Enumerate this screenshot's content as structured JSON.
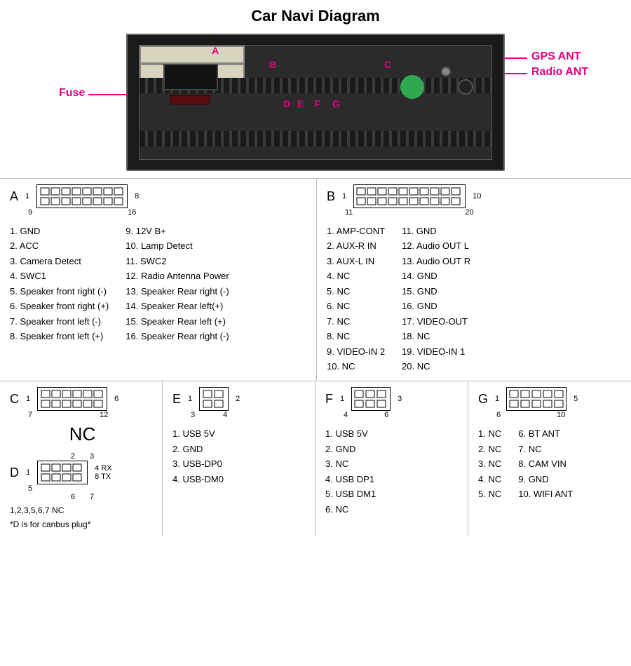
{
  "title": "Car Navi Diagram",
  "colors": {
    "accent": "#e6007e",
    "unit_bg": "#1a1a1a",
    "connector_cream": "#d9d4c0",
    "qc_green": "#2fa84f"
  },
  "photo_labels": {
    "fuse": "Fuse",
    "gps_ant": "GPS ANT",
    "radio_ant": "Radio ANT",
    "port_letters": [
      "A",
      "B",
      "C",
      "D",
      "E",
      "F",
      "G"
    ]
  },
  "connectors": {
    "A": {
      "letter": "A",
      "rows": 2,
      "cols": 8,
      "corner_labels": {
        "tl": "1",
        "tr": "8",
        "bl": "9",
        "br": "16"
      },
      "pins": [
        "GND",
        "ACC",
        "Camera Detect",
        "SWC1",
        "Speaker front right (-)",
        "Speaker front right (+)",
        "Speaker front left (-)",
        "Speaker front left (+)",
        "12V B+",
        "Lamp Detect",
        "SWC2",
        "Radio Antenna Power",
        "Speaker Rear right (-)",
        "Speaker Rear left(+)",
        "Speaker Rear left (+)",
        "Speaker Rear right (-)"
      ]
    },
    "B": {
      "letter": "B",
      "rows": 2,
      "cols": 10,
      "corner_labels": {
        "tl": "1",
        "tr": "10",
        "bl": "11",
        "br": "20"
      },
      "pins": [
        "AMP-CONT",
        "AUX-R IN",
        "AUX-L IN",
        "NC",
        "NC",
        "NC",
        "NC",
        "NC",
        "VIDEO-IN 2",
        "NC",
        "GND",
        "Audio OUT  L",
        "Audio OUT  R",
        "GND",
        "GND",
        "GND",
        "VIDEO-OUT",
        "NC",
        "VIDEO-IN 1",
        "NC"
      ]
    },
    "C": {
      "letter": "C",
      "rows": 2,
      "cols": 6,
      "corner_labels": {
        "tl": "1",
        "tr": "6",
        "bl": "7",
        "br": "12"
      },
      "nc_label": "NC"
    },
    "D": {
      "letter": "D",
      "rows": 2,
      "cols": 4,
      "corner_labels": {
        "tl": "1",
        "tr": "4",
        "bl": "5",
        "br": "8"
      },
      "top_extra": {
        "t2": "2",
        "t3": "3"
      },
      "bot_extra": {
        "b6": "6",
        "b7": "7"
      },
      "side_labels": {
        "rx": "RX",
        "tx": "TX"
      },
      "note1": "1,2,3,5,6,7  NC",
      "note2": "*D is for canbus plug*"
    },
    "E": {
      "letter": "E",
      "rows": 2,
      "cols": 2,
      "corner_labels": {
        "tl": "1",
        "tr": "2",
        "bl": "3",
        "br": "4"
      },
      "pins": [
        "USB 5V",
        "GND",
        "USB-DP0",
        "USB-DM0"
      ]
    },
    "F": {
      "letter": "F",
      "rows": 2,
      "cols": 3,
      "corner_labels": {
        "tl": "1",
        "tr": "3",
        "bl": "4",
        "br": "6"
      },
      "pins": [
        "USB 5V",
        "GND",
        "NC",
        "USB DP1",
        "USB DM1",
        "NC"
      ]
    },
    "G": {
      "letter": "G",
      "rows": 2,
      "cols": 5,
      "corner_labels": {
        "tl": "1",
        "tr": "5",
        "bl": "6",
        "br": "10"
      },
      "pins": [
        "NC",
        "NC",
        "NC",
        "NC",
        "NC",
        "BT ANT",
        "NC",
        "CAM VIN",
        "GND",
        "WIFI ANT"
      ]
    }
  }
}
